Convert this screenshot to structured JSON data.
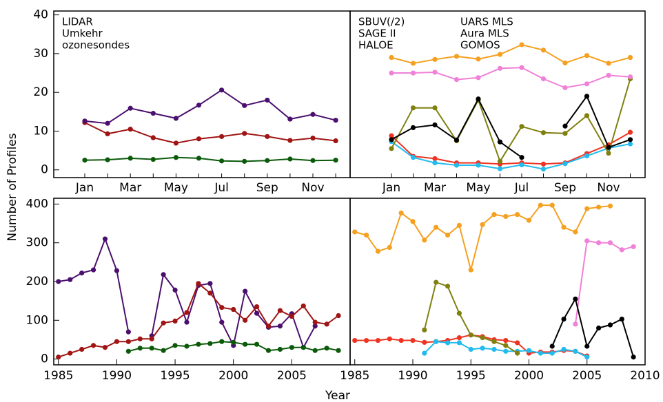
{
  "xlabel": "Year",
  "ylabel": "Number of Profiles",
  "chart_data": [
    {
      "type": "line",
      "categories": [
        "Jan",
        null,
        "Mar",
        null,
        "May",
        null,
        "Jul",
        null,
        "Sep",
        null,
        "Nov",
        null
      ],
      "ylim": [
        -2,
        41
      ],
      "yticks": [
        0,
        10,
        20,
        30,
        40
      ],
      "legend_columns": 1,
      "series": [
        {
          "name": "LIDAR",
          "color": "#a01414",
          "values": [
            12.2,
            9.3,
            10.5,
            8.3,
            6.9,
            8.0,
            8.6,
            9.4,
            8.6,
            7.6,
            8.2,
            7.5
          ]
        },
        {
          "name": "Umkehr",
          "color": "#4b0f6e",
          "values": [
            12.6,
            12.0,
            15.9,
            14.6,
            13.3,
            16.7,
            20.6,
            16.6,
            18.0,
            13.1,
            14.3,
            12.8
          ]
        },
        {
          "name": "ozonesondes",
          "color": "#0a5a0a",
          "values": [
            2.5,
            2.6,
            3.0,
            2.7,
            3.2,
            3.0,
            2.3,
            2.2,
            2.4,
            2.8,
            2.4,
            2.5
          ]
        }
      ]
    },
    {
      "type": "line",
      "categories": [
        "Jan",
        null,
        "Mar",
        null,
        "May",
        null,
        "Jul",
        null,
        "Sep",
        null,
        "Nov",
        null
      ],
      "ylim": [
        -2,
        41
      ],
      "legend_columns": 2,
      "series": [
        {
          "name": "SBUV(/2)",
          "color": "#f5a020",
          "values": [
            29.0,
            27.5,
            28.5,
            29.3,
            28.6,
            29.8,
            32.3,
            30.9,
            27.6,
            29.5,
            27.5,
            29.0
          ]
        },
        {
          "name": "SAGE II",
          "color": "#ee3322",
          "values": [
            8.8,
            3.5,
            2.9,
            1.8,
            1.8,
            1.5,
            1.8,
            1.5,
            1.8,
            4.2,
            6.5,
            9.7
          ]
        },
        {
          "name": "HALOE",
          "color": "#22bbee",
          "values": [
            7.3,
            3.2,
            1.8,
            1.2,
            1.2,
            0.3,
            1.3,
            0.2,
            1.6,
            3.6,
            5.6,
            6.7
          ]
        },
        {
          "name": "UARS MLS",
          "color": "#808010",
          "values": [
            5.5,
            16.0,
            16.0,
            7.5,
            18.0,
            2.2,
            11.2,
            9.6,
            9.4,
            14.0,
            4.3,
            23.5
          ]
        },
        {
          "name": "Aura MLS",
          "color": "#f080d8",
          "values": [
            25.0,
            25.0,
            25.2,
            23.3,
            23.8,
            26.2,
            26.4,
            23.5,
            21.2,
            22.2,
            24.4,
            24.0
          ]
        },
        {
          "name": "GOMOS",
          "color": "#000000",
          "values": [
            7.8,
            10.9,
            11.6,
            7.7,
            18.3,
            7.2,
            3.2,
            null,
            11.3,
            19.0,
            5.8,
            7.8
          ]
        }
      ]
    },
    {
      "type": "line",
      "x": [
        1985,
        1986,
        1987,
        1988,
        1989,
        1990,
        1991,
        1992,
        1993,
        1994,
        1995,
        1996,
        1997,
        1998,
        1999,
        2000,
        2001,
        2002,
        2003,
        2004,
        2005,
        2006,
        2007,
        2008,
        2009
      ],
      "xlim": [
        1984.6,
        2010
      ],
      "xticks": [
        1985,
        1990,
        1995,
        2000,
        2005
      ],
      "ylim": [
        -15,
        415
      ],
      "yticks": [
        0,
        100,
        200,
        300,
        400
      ],
      "series": [
        {
          "color": "#4b0f6e",
          "values": [
            200,
            205,
            222,
            230,
            310,
            228,
            70,
            null,
            60,
            218,
            178,
            95,
            190,
            195,
            95,
            35,
            175,
            118,
            82,
            85,
            117,
            30,
            85,
            null,
            null
          ]
        },
        {
          "color": "#a01414",
          "values": [
            5,
            15,
            25,
            35,
            30,
            45,
            45,
            52,
            52,
            93,
            98,
            120,
            195,
            170,
            133,
            128,
            100,
            135,
            85,
            125,
            110,
            137,
            95,
            90,
            112
          ]
        },
        {
          "color": "#0a5a0a",
          "values": [
            null,
            null,
            null,
            null,
            null,
            null,
            20,
            28,
            28,
            22,
            35,
            33,
            38,
            40,
            45,
            43,
            38,
            38,
            22,
            25,
            30,
            30,
            22,
            28,
            22
          ]
        }
      ]
    },
    {
      "type": "line",
      "x": [
        1985,
        1986,
        1987,
        1988,
        1989,
        1990,
        1991,
        1992,
        1993,
        1994,
        1995,
        1996,
        1997,
        1998,
        1999,
        2000,
        2001,
        2002,
        2003,
        2004,
        2005,
        2006,
        2007,
        2008,
        2009
      ],
      "xlim": [
        1984.6,
        2010
      ],
      "xticks": [
        1985,
        1990,
        1995,
        2000,
        2005,
        2010
      ],
      "ylim": [
        -15,
        415
      ],
      "series": [
        {
          "color": "#f5a020",
          "values": [
            328,
            320,
            278,
            288,
            377,
            355,
            307,
            340,
            320,
            345,
            230,
            347,
            373,
            368,
            373,
            358,
            397,
            397,
            340,
            328,
            388,
            392,
            395,
            null,
            null
          ]
        },
        {
          "color": "#ee3322",
          "values": [
            48,
            48,
            48,
            52,
            48,
            48,
            43,
            45,
            48,
            55,
            62,
            58,
            50,
            48,
            42,
            15,
            18,
            18,
            22,
            20,
            8,
            null,
            null,
            null,
            null
          ]
        },
        {
          "color": "#22bbee",
          "values": [
            null,
            null,
            null,
            null,
            null,
            null,
            15,
            45,
            42,
            42,
            25,
            28,
            25,
            20,
            20,
            22,
            15,
            15,
            25,
            20,
            5,
            null,
            null,
            null,
            null
          ]
        },
        {
          "color": "#808010",
          "values": [
            null,
            null,
            null,
            null,
            null,
            null,
            75,
            198,
            188,
            118,
            62,
            55,
            45,
            35,
            15,
            null,
            null,
            null,
            null,
            null,
            null,
            null,
            null,
            null,
            null
          ]
        },
        {
          "color": "#f080d8",
          "values": [
            null,
            null,
            null,
            null,
            null,
            null,
            null,
            null,
            null,
            null,
            null,
            null,
            null,
            null,
            null,
            null,
            null,
            null,
            null,
            90,
            305,
            300,
            300,
            282,
            290
          ]
        },
        {
          "color": "#000000",
          "values": [
            null,
            null,
            null,
            null,
            null,
            null,
            null,
            null,
            null,
            null,
            null,
            null,
            null,
            null,
            null,
            null,
            null,
            33,
            103,
            155,
            33,
            80,
            88,
            103,
            5
          ]
        }
      ]
    }
  ]
}
